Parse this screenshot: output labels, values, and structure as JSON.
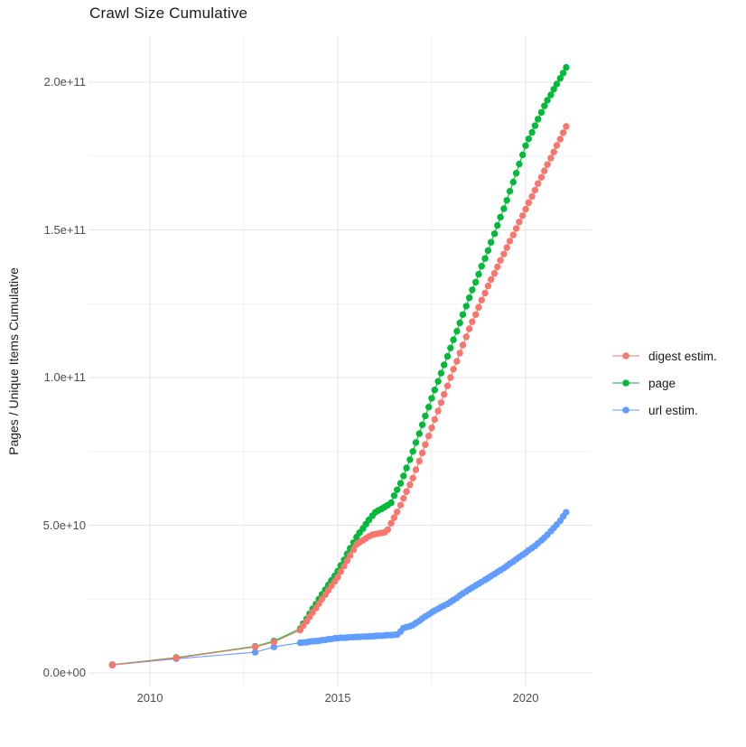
{
  "title": "Crawl Size Cumulative",
  "axes": {
    "y": {
      "label": "Pages / Unique Items Cumulative",
      "ticks": [
        {
          "value_e9": 0,
          "label": "0.0e+00"
        },
        {
          "value_e9": 50,
          "label": "5.0e+10"
        },
        {
          "value_e9": 100,
          "label": "1.0e+11"
        },
        {
          "value_e9": 150,
          "label": "1.5e+11"
        },
        {
          "value_e9": 200,
          "label": "2.0e+11"
        }
      ],
      "minor_values_e9": [
        25,
        75,
        125,
        175
      ]
    },
    "x": {
      "label": "",
      "ticks": [
        {
          "value": 2010,
          "label": "2010"
        },
        {
          "value": 2015,
          "label": "2015"
        },
        {
          "value": 2020,
          "label": "2020"
        }
      ],
      "minor_values": [
        2012.5,
        2017.5
      ]
    }
  },
  "legend": {
    "items": [
      {
        "label": "digest estim.",
        "color": "#F8766D"
      },
      {
        "label": "page",
        "color": "#00BA38"
      },
      {
        "label": "url estim.",
        "color": "#619CFF"
      }
    ]
  },
  "layout_hints": {
    "legend_position": "right",
    "grid": "major+minor",
    "background": "#FFFFFF",
    "grid_major_color": "#E4E4E4",
    "grid_minor_color": "#EDEDED"
  },
  "chart_data": {
    "type": "line",
    "title": "Crawl Size Cumulative",
    "xlabel": "",
    "ylabel": "Pages / Unique Items Cumulative",
    "x_unit": "year",
    "value_unit": "items, stored in units of 1e9 (billions)",
    "xlim": [
      2008.4,
      2021.8
    ],
    "ylim_e9": [
      0,
      215
    ],
    "marker": "point",
    "series": [
      {
        "name": "digest estim.",
        "color": "#F8766D",
        "points": [
          [
            2009,
            2.7
          ],
          [
            2010.7,
            5
          ],
          [
            2012.8,
            8.8
          ],
          [
            2013.3,
            10.5
          ],
          [
            2014,
            14.5
          ],
          [
            2014.08,
            16
          ],
          [
            2014.17,
            17.5
          ],
          [
            2014.25,
            19
          ],
          [
            2014.33,
            20.5
          ],
          [
            2014.42,
            22
          ],
          [
            2014.5,
            23.5
          ],
          [
            2014.58,
            25
          ],
          [
            2014.67,
            26.5
          ],
          [
            2014.75,
            28
          ],
          [
            2014.83,
            29.5
          ],
          [
            2014.92,
            31
          ],
          [
            2015,
            32.5
          ],
          [
            2015.08,
            34.3
          ],
          [
            2015.17,
            36.2
          ],
          [
            2015.25,
            38
          ],
          [
            2015.33,
            39.8
          ],
          [
            2015.42,
            41.7
          ],
          [
            2015.5,
            43.5
          ],
          [
            2015.58,
            44.2
          ],
          [
            2015.67,
            44.9
          ],
          [
            2015.75,
            45.6
          ],
          [
            2015.83,
            46.2
          ],
          [
            2015.92,
            46.8
          ],
          [
            2016,
            47
          ],
          [
            2016.08,
            47.2
          ],
          [
            2016.17,
            47.4
          ],
          [
            2016.25,
            47.6
          ],
          [
            2016.33,
            48.5
          ],
          [
            2016.42,
            50.7
          ],
          [
            2016.5,
            52.6
          ],
          [
            2016.58,
            54.5
          ],
          [
            2016.67,
            56.8
          ],
          [
            2016.75,
            59.1
          ],
          [
            2016.83,
            61.4
          ],
          [
            2016.92,
            63.7
          ],
          [
            2017,
            66
          ],
          [
            2017.08,
            68.8
          ],
          [
            2017.17,
            71.7
          ],
          [
            2017.25,
            74.5
          ],
          [
            2017.33,
            77.3
          ],
          [
            2017.42,
            80.2
          ],
          [
            2017.5,
            83
          ],
          [
            2017.58,
            85.8
          ],
          [
            2017.67,
            88.7
          ],
          [
            2017.75,
            91.5
          ],
          [
            2017.83,
            94.3
          ],
          [
            2017.92,
            97.2
          ],
          [
            2018,
            100
          ],
          [
            2018.08,
            102.8
          ],
          [
            2018.17,
            105.5
          ],
          [
            2018.25,
            108.3
          ],
          [
            2018.33,
            111
          ],
          [
            2018.42,
            113.8
          ],
          [
            2018.5,
            116.5
          ],
          [
            2018.58,
            118.9
          ],
          [
            2018.67,
            121.3
          ],
          [
            2018.75,
            123.8
          ],
          [
            2018.83,
            126.2
          ],
          [
            2018.92,
            128.6
          ],
          [
            2019,
            131
          ],
          [
            2019.08,
            133.2
          ],
          [
            2019.17,
            135.3
          ],
          [
            2019.25,
            137.5
          ],
          [
            2019.33,
            139.7
          ],
          [
            2019.42,
            141.8
          ],
          [
            2019.5,
            144
          ],
          [
            2019.58,
            146.2
          ],
          [
            2019.67,
            148.3
          ],
          [
            2019.75,
            150.5
          ],
          [
            2019.83,
            152.7
          ],
          [
            2019.92,
            154.8
          ],
          [
            2020,
            157
          ],
          [
            2020.08,
            159.2
          ],
          [
            2020.17,
            161.3
          ],
          [
            2020.25,
            163.5
          ],
          [
            2020.33,
            165.7
          ],
          [
            2020.42,
            167.8
          ],
          [
            2020.5,
            170
          ],
          [
            2020.58,
            172.1
          ],
          [
            2020.67,
            174.3
          ],
          [
            2020.75,
            176.4
          ],
          [
            2020.83,
            178.6
          ],
          [
            2020.92,
            180.7
          ],
          [
            2021,
            182.9
          ],
          [
            2021.08,
            185
          ]
        ]
      },
      {
        "name": "page",
        "color": "#00BA38",
        "points": [
          [
            2009,
            2.8
          ],
          [
            2010.7,
            5.2
          ],
          [
            2012.8,
            9
          ],
          [
            2013.3,
            10.8
          ],
          [
            2014,
            15
          ],
          [
            2014.08,
            16.7
          ],
          [
            2014.17,
            18.3
          ],
          [
            2014.25,
            20
          ],
          [
            2014.33,
            21.7
          ],
          [
            2014.42,
            23.3
          ],
          [
            2014.5,
            25
          ],
          [
            2014.58,
            26.6
          ],
          [
            2014.67,
            28.2
          ],
          [
            2014.75,
            29.8
          ],
          [
            2014.83,
            31.3
          ],
          [
            2014.92,
            32.9
          ],
          [
            2015,
            34.5
          ],
          [
            2015.08,
            36.4
          ],
          [
            2015.17,
            38.3
          ],
          [
            2015.25,
            40.3
          ],
          [
            2015.33,
            42.2
          ],
          [
            2015.42,
            44.1
          ],
          [
            2015.5,
            46
          ],
          [
            2015.58,
            47.5
          ],
          [
            2015.67,
            48.9
          ],
          [
            2015.75,
            50.4
          ],
          [
            2015.83,
            51.8
          ],
          [
            2015.92,
            53.2
          ],
          [
            2016,
            54.4
          ],
          [
            2016.08,
            55
          ],
          [
            2016.17,
            55.6
          ],
          [
            2016.25,
            56.2
          ],
          [
            2016.33,
            56.8
          ],
          [
            2016.42,
            57.6
          ],
          [
            2016.5,
            60
          ],
          [
            2016.58,
            62
          ],
          [
            2016.67,
            64.2
          ],
          [
            2016.75,
            66.7
          ],
          [
            2016.83,
            69.4
          ],
          [
            2016.92,
            72.2
          ],
          [
            2017,
            75
          ],
          [
            2017.08,
            78
          ],
          [
            2017.17,
            81
          ],
          [
            2017.25,
            84
          ],
          [
            2017.33,
            87
          ],
          [
            2017.42,
            90
          ],
          [
            2017.5,
            93
          ],
          [
            2017.58,
            95.8
          ],
          [
            2017.67,
            98.7
          ],
          [
            2017.75,
            101.5
          ],
          [
            2017.83,
            104.3
          ],
          [
            2017.92,
            107.2
          ],
          [
            2018,
            110
          ],
          [
            2018.08,
            112.8
          ],
          [
            2018.17,
            115.7
          ],
          [
            2018.25,
            118.5
          ],
          [
            2018.33,
            121.3
          ],
          [
            2018.42,
            124.2
          ],
          [
            2018.5,
            127
          ],
          [
            2018.58,
            129.7
          ],
          [
            2018.67,
            132.3
          ],
          [
            2018.75,
            135
          ],
          [
            2018.83,
            137.7
          ],
          [
            2018.92,
            140.3
          ],
          [
            2019,
            143
          ],
          [
            2019.08,
            145.8
          ],
          [
            2019.17,
            148.7
          ],
          [
            2019.25,
            151.5
          ],
          [
            2019.33,
            154.3
          ],
          [
            2019.42,
            157.2
          ],
          [
            2019.5,
            160
          ],
          [
            2019.58,
            163.1
          ],
          [
            2019.67,
            166.2
          ],
          [
            2019.75,
            169.2
          ],
          [
            2019.83,
            172.3
          ],
          [
            2019.92,
            175.4
          ],
          [
            2020,
            178.5
          ],
          [
            2020.08,
            180.8
          ],
          [
            2020.17,
            183
          ],
          [
            2020.25,
            185.3
          ],
          [
            2020.33,
            187.5
          ],
          [
            2020.42,
            189.8
          ],
          [
            2020.5,
            192
          ],
          [
            2020.58,
            193.9
          ],
          [
            2020.67,
            195.7
          ],
          [
            2020.75,
            197.6
          ],
          [
            2020.83,
            199.4
          ],
          [
            2020.92,
            201.3
          ],
          [
            2021,
            203.1
          ],
          [
            2021.08,
            205
          ]
        ]
      },
      {
        "name": "url estim.",
        "color": "#619CFF",
        "points": [
          [
            2009,
            2.7
          ],
          [
            2010.7,
            4.8
          ],
          [
            2012.8,
            7
          ],
          [
            2013.3,
            8.8
          ],
          [
            2014,
            10.2
          ],
          [
            2014.08,
            10.3
          ],
          [
            2014.17,
            10.4
          ],
          [
            2014.25,
            10.6
          ],
          [
            2014.33,
            10.7
          ],
          [
            2014.42,
            10.8
          ],
          [
            2014.5,
            10.9
          ],
          [
            2014.58,
            11.1
          ],
          [
            2014.67,
            11.2
          ],
          [
            2014.75,
            11.4
          ],
          [
            2014.83,
            11.5
          ],
          [
            2014.92,
            11.7
          ],
          [
            2015,
            11.8
          ],
          [
            2015.08,
            11.9
          ],
          [
            2015.17,
            11.9
          ],
          [
            2015.25,
            12
          ],
          [
            2015.33,
            12.1
          ],
          [
            2015.42,
            12.1
          ],
          [
            2015.5,
            12.2
          ],
          [
            2015.58,
            12.2
          ],
          [
            2015.67,
            12.3
          ],
          [
            2015.75,
            12.3
          ],
          [
            2015.83,
            12.4
          ],
          [
            2015.92,
            12.4
          ],
          [
            2016,
            12.5
          ],
          [
            2016.08,
            12.6
          ],
          [
            2016.17,
            12.6
          ],
          [
            2016.25,
            12.7
          ],
          [
            2016.33,
            12.8
          ],
          [
            2016.42,
            12.8
          ],
          [
            2016.5,
            12.9
          ],
          [
            2016.58,
            13
          ],
          [
            2016.67,
            14
          ],
          [
            2016.75,
            15.2
          ],
          [
            2016.83,
            15.5
          ],
          [
            2016.92,
            15.8
          ],
          [
            2017,
            16.2
          ],
          [
            2017.08,
            16.9
          ],
          [
            2017.17,
            17.6
          ],
          [
            2017.25,
            18.4
          ],
          [
            2017.33,
            19.1
          ],
          [
            2017.42,
            19.8
          ],
          [
            2017.5,
            20.5
          ],
          [
            2017.58,
            21.1
          ],
          [
            2017.67,
            21.7
          ],
          [
            2017.75,
            22.3
          ],
          [
            2017.83,
            22.8
          ],
          [
            2017.92,
            23.4
          ],
          [
            2018,
            24
          ],
          [
            2018.08,
            24.7
          ],
          [
            2018.17,
            25.4
          ],
          [
            2018.25,
            26.2
          ],
          [
            2018.33,
            26.9
          ],
          [
            2018.42,
            27.6
          ],
          [
            2018.5,
            28.3
          ],
          [
            2018.58,
            28.9
          ],
          [
            2018.67,
            29.6
          ],
          [
            2018.75,
            30.2
          ],
          [
            2018.83,
            30.8
          ],
          [
            2018.92,
            31.5
          ],
          [
            2019,
            32.1
          ],
          [
            2019.08,
            32.8
          ],
          [
            2019.17,
            33.5
          ],
          [
            2019.25,
            34.2
          ],
          [
            2019.33,
            34.8
          ],
          [
            2019.42,
            35.5
          ],
          [
            2019.5,
            36.2
          ],
          [
            2019.58,
            37
          ],
          [
            2019.67,
            37.7
          ],
          [
            2019.75,
            38.5
          ],
          [
            2019.83,
            39.2
          ],
          [
            2019.92,
            40
          ],
          [
            2020,
            40.7
          ],
          [
            2020.08,
            41.5
          ],
          [
            2020.17,
            42.3
          ],
          [
            2020.25,
            43
          ],
          [
            2020.33,
            43.9
          ],
          [
            2020.42,
            44.9
          ],
          [
            2020.5,
            45.8
          ],
          [
            2020.58,
            46.8
          ],
          [
            2020.67,
            48
          ],
          [
            2020.75,
            49.1
          ],
          [
            2020.83,
            50.2
          ],
          [
            2020.92,
            51.5
          ],
          [
            2021,
            53
          ],
          [
            2021.08,
            54.4
          ]
        ]
      }
    ]
  }
}
